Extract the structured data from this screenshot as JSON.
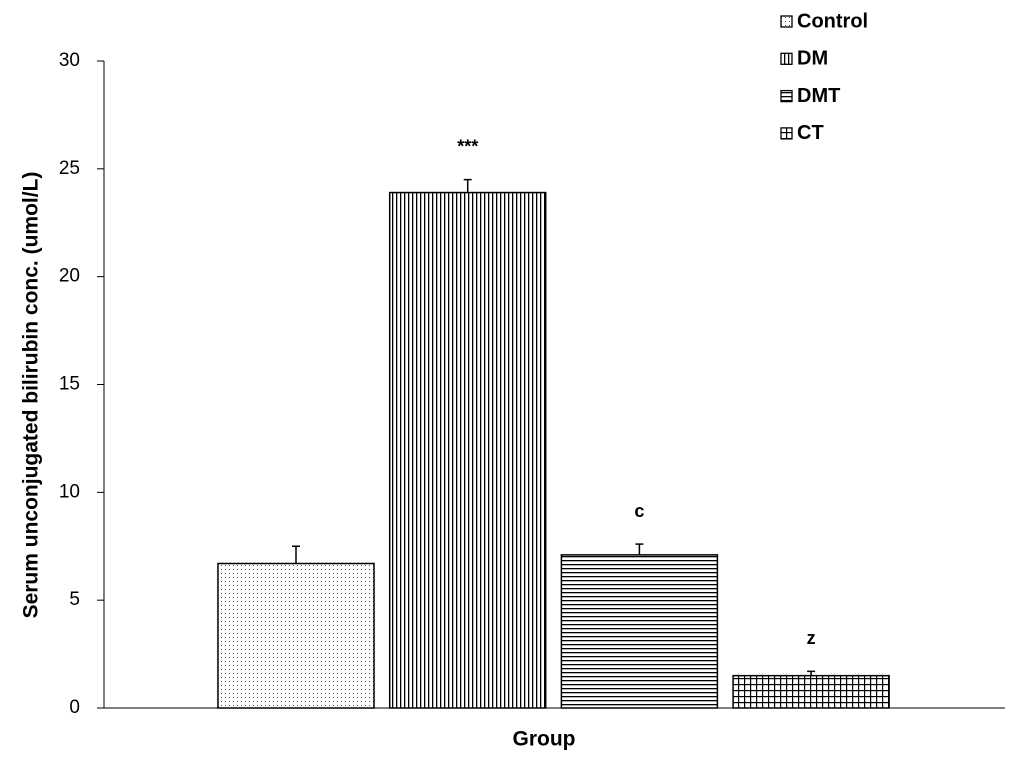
{
  "chart_data": {
    "type": "bar",
    "xlabel": "Group",
    "ylabel": "Serum unconjugated bilirubin conc. (umol/L)",
    "ylim": [
      0,
      30
    ],
    "yticks": [
      0,
      5,
      10,
      15,
      20,
      25,
      30
    ],
    "grid": false,
    "legend": "top-right",
    "series": [
      {
        "name": "Control",
        "color": "#000000",
        "pattern": "dots",
        "values": [
          6.7
        ],
        "errors": [
          0.8
        ]
      },
      {
        "name": "DM",
        "color": "#000000",
        "pattern": "vertical",
        "values": [
          23.9
        ],
        "errors": [
          0.6
        ],
        "annotation": "***"
      },
      {
        "name": "DMT",
        "color": "#000000",
        "pattern": "horizontal",
        "values": [
          7.1
        ],
        "errors": [
          0.5
        ],
        "annotation": "c"
      },
      {
        "name": "CT",
        "color": "#000000",
        "pattern": "grid",
        "values": [
          1.5
        ],
        "errors": [
          0.2
        ],
        "annotation": "z"
      }
    ]
  }
}
